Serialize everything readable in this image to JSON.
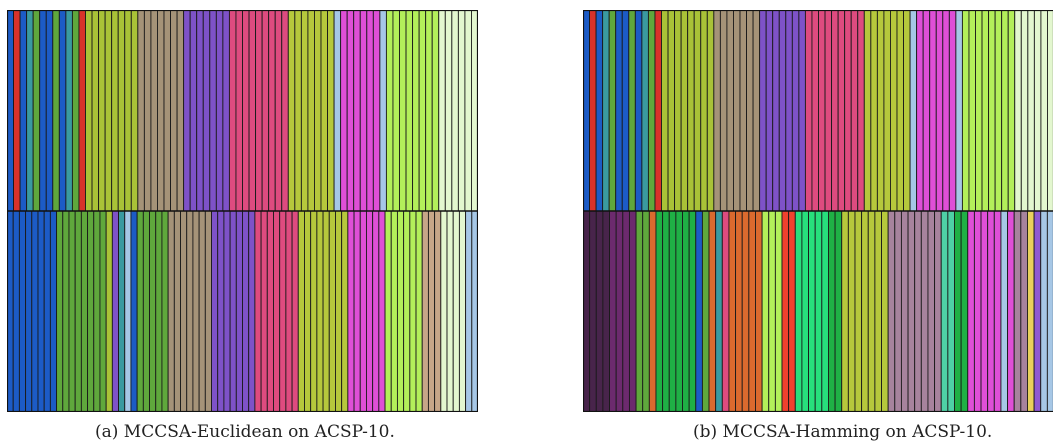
{
  "captions": {
    "a": "(a) MCCSA-Euclidean on ACSP-10.",
    "b": "(b) MCCSA-Hamming on ACSP-10."
  },
  "colors": {
    "R": "#d8322a",
    "B": "#1c5bc6",
    "G": "#5fa83c",
    "T": "#3a9aa0",
    "Y": "#a9c237",
    "K": "#a59378",
    "P": "#7e52c8",
    "M": "#de4b7f",
    "L": "#b6c83c",
    "S": "#a6c7e6",
    "N": "#df4fd7",
    "A": "#b3ef5a",
    "W": "#e3f7cf",
    "I": "#4e9ad0",
    "C": "#c6a688",
    "V": "#48244b",
    "D": "#6c2a6e",
    "E": "#1fb045",
    "O": "#db6a2e",
    "F": "#f0422e",
    "H": "#27e07c",
    "Q": "#a7839d",
    "U": "#4ed1a6",
    "Z": "#e9d15c",
    "X": "#8f5ad2"
  },
  "panels": [
    {
      "top": [
        [
          "B",
          1
        ],
        [
          "R",
          1
        ],
        [
          "B",
          1
        ],
        [
          "T",
          1
        ],
        [
          "G",
          1
        ],
        [
          "B",
          2
        ],
        [
          "G",
          1
        ],
        [
          "B",
          1
        ],
        [
          "T",
          1
        ],
        [
          "G",
          1
        ],
        [
          "R",
          1
        ],
        [
          "Y",
          8
        ],
        [
          "K",
          7
        ],
        [
          "P",
          7
        ],
        [
          "M",
          9
        ],
        [
          "L",
          7
        ],
        [
          "S",
          1
        ],
        [
          "N",
          6
        ],
        [
          "S",
          1
        ],
        [
          "A",
          8
        ],
        [
          "W",
          6
        ]
      ],
      "bottom": [
        [
          "B",
          8
        ],
        [
          "G",
          8
        ],
        [
          "Y",
          1
        ],
        [
          "P",
          1
        ],
        [
          "T",
          1
        ],
        [
          "S",
          1
        ],
        [
          "B",
          1
        ],
        [
          "G",
          5
        ],
        [
          "K",
          7
        ],
        [
          "P",
          7
        ],
        [
          "M",
          7
        ],
        [
          "L",
          8
        ],
        [
          "N",
          6
        ],
        [
          "A",
          6
        ],
        [
          "C",
          3
        ],
        [
          "W",
          4
        ],
        [
          "S",
          2
        ]
      ]
    },
    {
      "top": [
        [
          "B",
          1
        ],
        [
          "R",
          1
        ],
        [
          "B",
          1
        ],
        [
          "T",
          1
        ],
        [
          "G",
          1
        ],
        [
          "B",
          2
        ],
        [
          "G",
          1
        ],
        [
          "B",
          1
        ],
        [
          "T",
          1
        ],
        [
          "G",
          1
        ],
        [
          "R",
          1
        ],
        [
          "Y",
          8
        ],
        [
          "K",
          7
        ],
        [
          "P",
          7
        ],
        [
          "M",
          9
        ],
        [
          "L",
          7
        ],
        [
          "S",
          1
        ],
        [
          "N",
          6
        ],
        [
          "S",
          1
        ],
        [
          "A",
          8
        ],
        [
          "W",
          6
        ]
      ],
      "bottom": [
        [
          "V",
          4
        ],
        [
          "D",
          4
        ],
        [
          "G",
          2
        ],
        [
          "O",
          1
        ],
        [
          "E",
          6
        ],
        [
          "B",
          1
        ],
        [
          "G",
          1
        ],
        [
          "O",
          1
        ],
        [
          "T",
          1
        ],
        [
          "M",
          1
        ],
        [
          "O",
          5
        ],
        [
          "A",
          3
        ],
        [
          "F",
          2
        ],
        [
          "H",
          5
        ],
        [
          "E",
          2
        ],
        [
          "L",
          7
        ],
        [
          "Q",
          8
        ],
        [
          "U",
          2
        ],
        [
          "E",
          2
        ],
        [
          "N",
          5
        ],
        [
          "S",
          1
        ],
        [
          "N",
          1
        ],
        [
          "Q",
          2
        ],
        [
          "Z",
          1
        ],
        [
          "X",
          1
        ],
        [
          "S",
          2
        ]
      ]
    }
  ]
}
